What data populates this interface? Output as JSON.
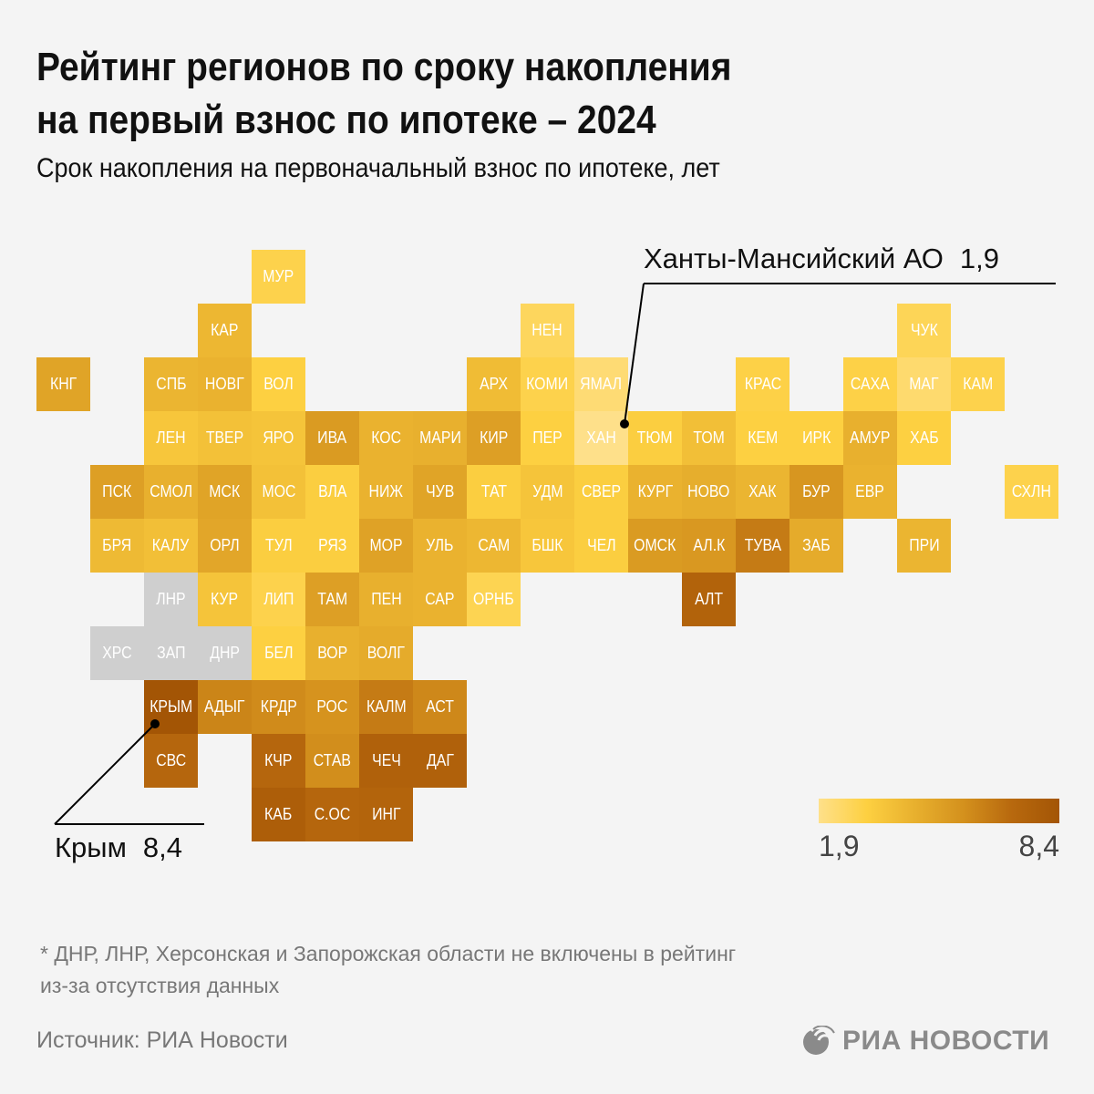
{
  "header": {
    "title_line1": "Рейтинг регионов по сроку накопления",
    "title_line2": "на первый взнос по ипотеке – 2024",
    "subtitle": "Срок накопления на первоначальный взнос по ипотеке, лет"
  },
  "colors": {
    "background": "#f4f4f4",
    "no_data": "#cfcfcf",
    "scale": [
      "#fee08a",
      "#fdd041",
      "#e8b02e",
      "#d4911d",
      "#b8690e",
      "#a35505"
    ]
  },
  "chart_data": {
    "type": "heatmap",
    "subtype": "tile-grid-map",
    "title": "Рейтинг регионов по сроку накопления на первый взнос по ипотеке – 2024",
    "value_label": "Срок накопления на первоначальный взнос по ипотеке, лет",
    "range": [
      1.9,
      8.4
    ],
    "note": "tile values estimated from fill color; only ХМАО (1,9) and Крым (8,4) are printed",
    "regions": [
      {
        "code": "МУР",
        "row": 0,
        "col": 4,
        "value": 3.0
      },
      {
        "code": "КАР",
        "row": 1,
        "col": 3,
        "value": 4.2
      },
      {
        "code": "НЕН",
        "row": 1,
        "col": 9,
        "value": 2.7
      },
      {
        "code": "ЧУК",
        "row": 1,
        "col": 16,
        "value": 2.8
      },
      {
        "code": "КНГ",
        "row": 2,
        "col": 0,
        "value": 5.0
      },
      {
        "code": "СПБ",
        "row": 2,
        "col": 2,
        "value": 4.3
      },
      {
        "code": "НОВГ",
        "row": 2,
        "col": 3,
        "value": 4.4
      },
      {
        "code": "ВОЛ",
        "row": 2,
        "col": 4,
        "value": 3.2
      },
      {
        "code": "АРХ",
        "row": 2,
        "col": 8,
        "value": 4.0
      },
      {
        "code": "КОМИ",
        "row": 2,
        "col": 9,
        "value": 3.0
      },
      {
        "code": "ЯМАЛ",
        "row": 2,
        "col": 10,
        "value": 2.3
      },
      {
        "code": "КРАС",
        "row": 2,
        "col": 13,
        "value": 3.1
      },
      {
        "code": "САХА",
        "row": 2,
        "col": 15,
        "value": 3.1
      },
      {
        "code": "МАГ",
        "row": 2,
        "col": 16,
        "value": 2.4
      },
      {
        "code": "КАМ",
        "row": 2,
        "col": 17,
        "value": 3.0
      },
      {
        "code": "ЛЕН",
        "row": 3,
        "col": 2,
        "value": 3.6
      },
      {
        "code": "ТВЕР",
        "row": 3,
        "col": 3,
        "value": 3.8
      },
      {
        "code": "ЯРО",
        "row": 3,
        "col": 4,
        "value": 3.7
      },
      {
        "code": "ИВА",
        "row": 3,
        "col": 5,
        "value": 5.4
      },
      {
        "code": "КОС",
        "row": 3,
        "col": 6,
        "value": 4.4
      },
      {
        "code": "МАРИ",
        "row": 3,
        "col": 7,
        "value": 4.5
      },
      {
        "code": "КИР",
        "row": 3,
        "col": 8,
        "value": 5.2
      },
      {
        "code": "ПЕР",
        "row": 3,
        "col": 9,
        "value": 3.2
      },
      {
        "code": "ХАН",
        "row": 3,
        "col": 10,
        "value": 1.9
      },
      {
        "code": "ТЮМ",
        "row": 3,
        "col": 11,
        "value": 3.3
      },
      {
        "code": "ТОМ",
        "row": 3,
        "col": 12,
        "value": 3.9
      },
      {
        "code": "КЕМ",
        "row": 3,
        "col": 13,
        "value": 3.2
      },
      {
        "code": "ИРК",
        "row": 3,
        "col": 14,
        "value": 3.2
      },
      {
        "code": "АМУР",
        "row": 3,
        "col": 15,
        "value": 4.5
      },
      {
        "code": "ХАБ",
        "row": 3,
        "col": 16,
        "value": 3.2
      },
      {
        "code": "ПСК",
        "row": 4,
        "col": 1,
        "value": 5.2
      },
      {
        "code": "СМОЛ",
        "row": 4,
        "col": 2,
        "value": 4.5
      },
      {
        "code": "МСК",
        "row": 4,
        "col": 3,
        "value": 5.0
      },
      {
        "code": "МОС",
        "row": 4,
        "col": 4,
        "value": 3.8
      },
      {
        "code": "ВЛА",
        "row": 4,
        "col": 5,
        "value": 3.3
      },
      {
        "code": "НИЖ",
        "row": 4,
        "col": 6,
        "value": 4.4
      },
      {
        "code": "ЧУВ",
        "row": 4,
        "col": 7,
        "value": 5.0
      },
      {
        "code": "ТАТ",
        "row": 4,
        "col": 8,
        "value": 3.3
      },
      {
        "code": "УДМ",
        "row": 4,
        "col": 9,
        "value": 3.7
      },
      {
        "code": "СВЕР",
        "row": 4,
        "col": 10,
        "value": 3.3
      },
      {
        "code": "КУРГ",
        "row": 4,
        "col": 11,
        "value": 4.4
      },
      {
        "code": "НОВО",
        "row": 4,
        "col": 12,
        "value": 4.6
      },
      {
        "code": "ХАК",
        "row": 4,
        "col": 13,
        "value": 4.3
      },
      {
        "code": "БУР",
        "row": 4,
        "col": 14,
        "value": 5.6
      },
      {
        "code": "ЕВР",
        "row": 4,
        "col": 15,
        "value": 4.4
      },
      {
        "code": "СХЛН",
        "row": 4,
        "col": 18,
        "value": 3.0
      },
      {
        "code": "БРЯ",
        "row": 5,
        "col": 1,
        "value": 4.1
      },
      {
        "code": "КАЛУ",
        "row": 5,
        "col": 2,
        "value": 3.9
      },
      {
        "code": "ОРЛ",
        "row": 5,
        "col": 3,
        "value": 4.9
      },
      {
        "code": "ТУЛ",
        "row": 5,
        "col": 4,
        "value": 3.3
      },
      {
        "code": "РЯЗ",
        "row": 5,
        "col": 5,
        "value": 3.3
      },
      {
        "code": "МОР",
        "row": 5,
        "col": 6,
        "value": 5.1
      },
      {
        "code": "УЛЬ",
        "row": 5,
        "col": 7,
        "value": 4.4
      },
      {
        "code": "САМ",
        "row": 5,
        "col": 8,
        "value": 4.2
      },
      {
        "code": "БШК",
        "row": 5,
        "col": 9,
        "value": 3.6
      },
      {
        "code": "ЧЕЛ",
        "row": 5,
        "col": 10,
        "value": 3.3
      },
      {
        "code": "ОМСК",
        "row": 5,
        "col": 11,
        "value": 5.4
      },
      {
        "code": "АЛ.К",
        "row": 5,
        "col": 12,
        "value": 5.5
      },
      {
        "code": "ТУВА",
        "row": 5,
        "col": 13,
        "value": 6.5
      },
      {
        "code": "ЗАБ",
        "row": 5,
        "col": 14,
        "value": 4.7
      },
      {
        "code": "ПРИ",
        "row": 5,
        "col": 16,
        "value": 4.3
      },
      {
        "code": "ЛНР",
        "row": 6,
        "col": 2,
        "value": null
      },
      {
        "code": "КУР",
        "row": 6,
        "col": 3,
        "value": 3.7
      },
      {
        "code": "ЛИП",
        "row": 6,
        "col": 4,
        "value": 3.0
      },
      {
        "code": "ТАМ",
        "row": 6,
        "col": 5,
        "value": 5.2
      },
      {
        "code": "ПЕН",
        "row": 6,
        "col": 6,
        "value": 4.5
      },
      {
        "code": "САР",
        "row": 6,
        "col": 7,
        "value": 4.4
      },
      {
        "code": "ОРНБ",
        "row": 6,
        "col": 8,
        "value": 2.9
      },
      {
        "code": "АЛТ",
        "row": 6,
        "col": 12,
        "value": 7.5
      },
      {
        "code": "ХРС",
        "row": 7,
        "col": 1,
        "value": null
      },
      {
        "code": "ЗАП",
        "row": 7,
        "col": 2,
        "value": null
      },
      {
        "code": "ДНР",
        "row": 7,
        "col": 3,
        "value": null
      },
      {
        "code": "БЕЛ",
        "row": 7,
        "col": 4,
        "value": 3.2
      },
      {
        "code": "ВОР",
        "row": 7,
        "col": 5,
        "value": 4.5
      },
      {
        "code": "ВОЛГ",
        "row": 7,
        "col": 6,
        "value": 4.7
      },
      {
        "code": "КРЫМ",
        "row": 8,
        "col": 2,
        "value": 8.4
      },
      {
        "code": "АДЫГ",
        "row": 8,
        "col": 3,
        "value": 6.2
      },
      {
        "code": "КРДР",
        "row": 8,
        "col": 4,
        "value": 6.0
      },
      {
        "code": "РОС",
        "row": 8,
        "col": 5,
        "value": 5.7
      },
      {
        "code": "КАЛМ",
        "row": 8,
        "col": 6,
        "value": 6.5
      },
      {
        "code": "АСТ",
        "row": 8,
        "col": 7,
        "value": 6.1
      },
      {
        "code": "СВС",
        "row": 9,
        "col": 2,
        "value": 7.3
      },
      {
        "code": "КЧР",
        "row": 9,
        "col": 4,
        "value": 7.3
      },
      {
        "code": "СТАВ",
        "row": 9,
        "col": 5,
        "value": 5.9
      },
      {
        "code": "ЧЕЧ",
        "row": 9,
        "col": 6,
        "value": 7.6
      },
      {
        "code": "ДАГ",
        "row": 9,
        "col": 7,
        "value": 7.6
      },
      {
        "code": "КАБ",
        "row": 10,
        "col": 4,
        "value": 7.8
      },
      {
        "code": "С.ОС",
        "row": 10,
        "col": 5,
        "value": 7.3
      },
      {
        "code": "ИНГ",
        "row": 10,
        "col": 6,
        "value": 7.4
      }
    ]
  },
  "callouts": {
    "max": {
      "name": "Крым",
      "value": "8,4"
    },
    "min": {
      "name": "Ханты-Мансийский АО",
      "value": "1,9"
    }
  },
  "legend": {
    "min_label": "1,9",
    "max_label": "8,4"
  },
  "footer": {
    "note_line1": "* ДНР, ЛНР, Херсонская и Запорожская области не включены в рейтинг",
    "note_line2": "из-за отсутствия данных",
    "source": "Источник: РИА Новости",
    "logo_text": "РИА НОВОСТИ"
  }
}
